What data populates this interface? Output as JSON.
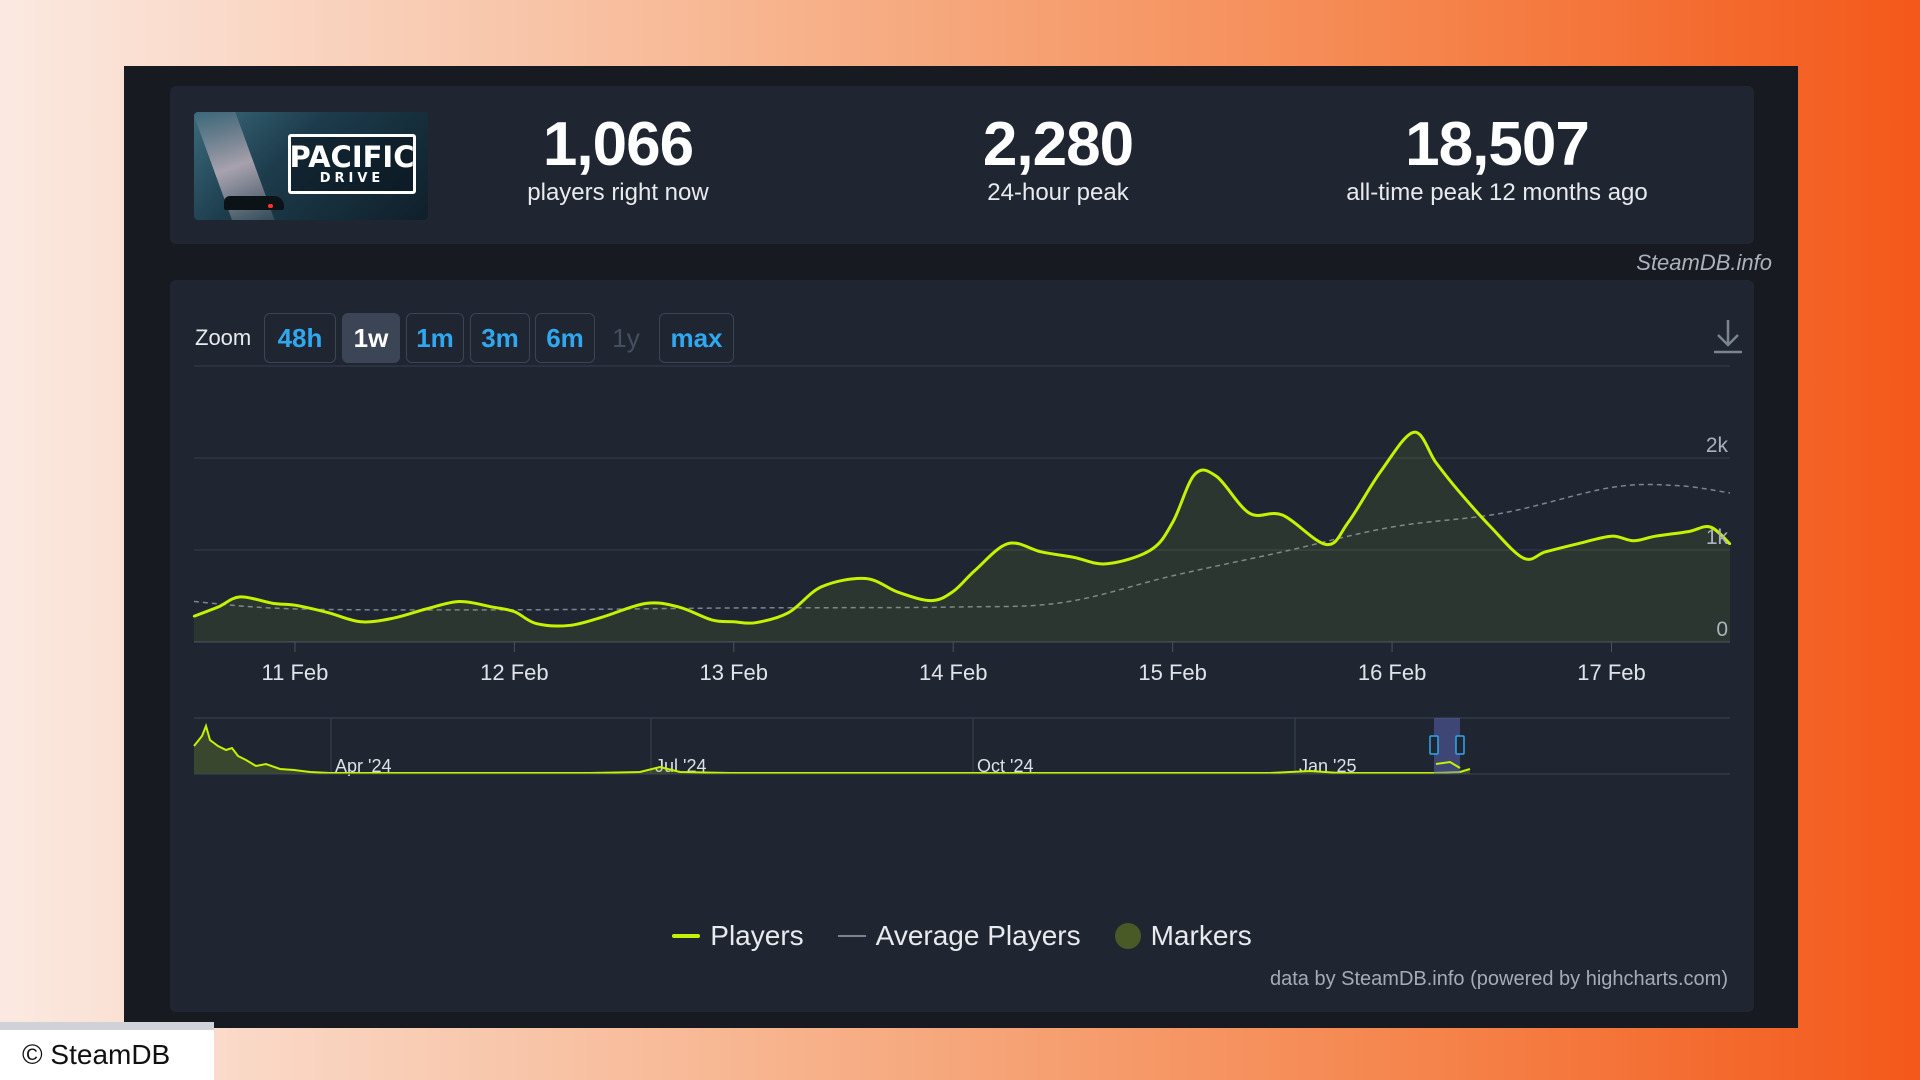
{
  "stats": [
    {
      "value": "1,066",
      "label": "players right now"
    },
    {
      "value": "2,280",
      "label": "24-hour peak"
    },
    {
      "value": "18,507",
      "label": "all-time peak 12 months ago"
    }
  ],
  "logo": {
    "title": "PACIFIC",
    "subtitle": "DRIVE"
  },
  "credit_top": "SteamDB.info",
  "zoom": {
    "label": "Zoom",
    "buttons": [
      "48h",
      "1w",
      "1m",
      "3m",
      "6m",
      "1y",
      "max"
    ],
    "active": "1w",
    "disabled": "1y"
  },
  "icons": {
    "download": "download-icon"
  },
  "colors": {
    "players": "#c5f200",
    "average": "#7b8592",
    "markers": "#4a5a26",
    "accent": "#30a7ee"
  },
  "chart_data": {
    "type": "line",
    "x_ticks": [
      "11 Feb",
      "12 Feb",
      "13 Feb",
      "14 Feb",
      "15 Feb",
      "16 Feb",
      "17 Feb"
    ],
    "y_ticks": [
      "0",
      "1k",
      "2k"
    ],
    "ylim": [
      0,
      3000
    ],
    "xlim_days": [
      -0.46,
      6.54
    ],
    "series": [
      {
        "name": "Players",
        "x_days": [
          -0.46,
          -0.35,
          -0.25,
          -0.1,
          0.0,
          0.15,
          0.3,
          0.45,
          0.6,
          0.75,
          0.9,
          1.0,
          1.1,
          1.25,
          1.4,
          1.6,
          1.75,
          1.9,
          2.0,
          2.1,
          2.25,
          2.4,
          2.6,
          2.75,
          2.9,
          3.0,
          3.1,
          3.25,
          3.4,
          3.55,
          3.7,
          3.9,
          4.0,
          4.1,
          4.2,
          4.35,
          4.5,
          4.7,
          4.8,
          4.95,
          5.1,
          5.2,
          5.3,
          5.45,
          5.6,
          5.7,
          5.85,
          6.0,
          6.1,
          6.2,
          6.35,
          6.45,
          6.54
        ],
        "values": [
          280,
          380,
          490,
          420,
          400,
          320,
          220,
          260,
          360,
          440,
          380,
          330,
          200,
          180,
          270,
          420,
          380,
          240,
          220,
          210,
          320,
          600,
          690,
          540,
          450,
          550,
          780,
          1070,
          980,
          920,
          850,
          1000,
          1300,
          1820,
          1800,
          1400,
          1380,
          1060,
          1300,
          1860,
          2280,
          1950,
          1650,
          1250,
          910,
          980,
          1070,
          1150,
          1100,
          1150,
          1200,
          1250,
          1066
        ]
      },
      {
        "name": "Average Players",
        "x_days": [
          -0.46,
          0.0,
          1.0,
          2.0,
          3.0,
          3.5,
          4.0,
          4.5,
          5.0,
          5.5,
          6.0,
          6.3,
          6.54
        ],
        "values": [
          440,
          360,
          350,
          370,
          380,
          430,
          720,
          980,
          1250,
          1400,
          1680,
          1700,
          1620
        ]
      }
    ],
    "navigator": {
      "x_ticks": [
        "Apr '24",
        "Jul '24",
        "Oct '24",
        "Jan '25"
      ]
    },
    "legend": [
      "Players",
      "Average Players",
      "Markers"
    ]
  },
  "footer_credit": "data by SteamDB.info (powered by highcharts.com)",
  "copyright": "© SteamDB"
}
